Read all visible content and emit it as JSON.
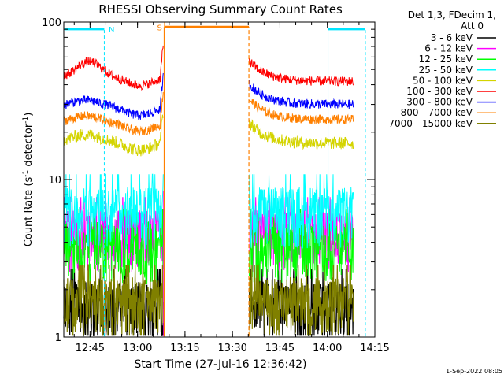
{
  "chart_data": {
    "type": "line",
    "title": "RHESSI Observing Summary Count Rates",
    "xlabel": "Start Time (27-Jul-16 12:36:42)",
    "ylabel_main": "Count Rate (s",
    "ylabel_sup1": "-1",
    "ylabel_mid": " detector",
    "ylabel_sup2": "-1",
    "ylabel_end": ")",
    "yscale": "log",
    "ylim": [
      1,
      100
    ],
    "xlim_minutes": [
      0,
      98.3
    ],
    "x_ticks": [
      {
        "label": "12:45",
        "min": 8.3
      },
      {
        "label": "13:00",
        "min": 23.3
      },
      {
        "label": "13:15",
        "min": 38.3
      },
      {
        "label": "13:30",
        "min": 53.3
      },
      {
        "label": "13:45",
        "min": 68.3
      },
      {
        "label": "14:00",
        "min": 83.3
      },
      {
        "label": "14:15",
        "min": 98.3
      }
    ],
    "y_ticks": [
      {
        "label": "1",
        "value": 1
      },
      {
        "label": "10",
        "value": 10
      },
      {
        "label": "100",
        "value": 100
      }
    ],
    "legend_header": [
      "Det 1,3, FDecim 1,",
      "Att 0"
    ],
    "legend_position": "right",
    "timestamp": "1-Sep-2022 08:05",
    "flags": {
      "night_label": "N",
      "saa_label": "S"
    },
    "series": [
      {
        "name": "3 - 6 keV",
        "color": "#000000",
        "level": [
          1.5,
          1.5
        ],
        "noise": 0.5
      },
      {
        "name": "6 - 12 keV",
        "color": "#ff00ff",
        "level": [
          4.3,
          4.3
        ],
        "noise": 0.3
      },
      {
        "name": "12 - 25 keV",
        "color": "#00ff00",
        "level": [
          3.6,
          3.6
        ],
        "noise": 0.3
      },
      {
        "name": "25 - 50 keV",
        "color": "#00ffff",
        "level": [
          6.0,
          6.0
        ],
        "noise": 0.35
      },
      {
        "name": "50 - 100 keV",
        "color": "#d4d400",
        "level": [
          17.5,
          17.0
        ],
        "noise": 0.08
      },
      {
        "name": "100 - 300 keV",
        "color": "#ff0000",
        "level": [
          45,
          42
        ],
        "noise": 0.06
      },
      {
        "name": "300 - 800 keV",
        "color": "#0000ff",
        "level": [
          29,
          30
        ],
        "noise": 0.06
      },
      {
        "name": "800 - 7000 keV",
        "color": "#ff8000",
        "level": [
          23,
          24
        ],
        "noise": 0.06
      },
      {
        "name": "7000 - 15000 keV",
        "color": "#808000",
        "level": [
          1.6,
          1.6
        ],
        "noise": 0.4
      }
    ]
  }
}
